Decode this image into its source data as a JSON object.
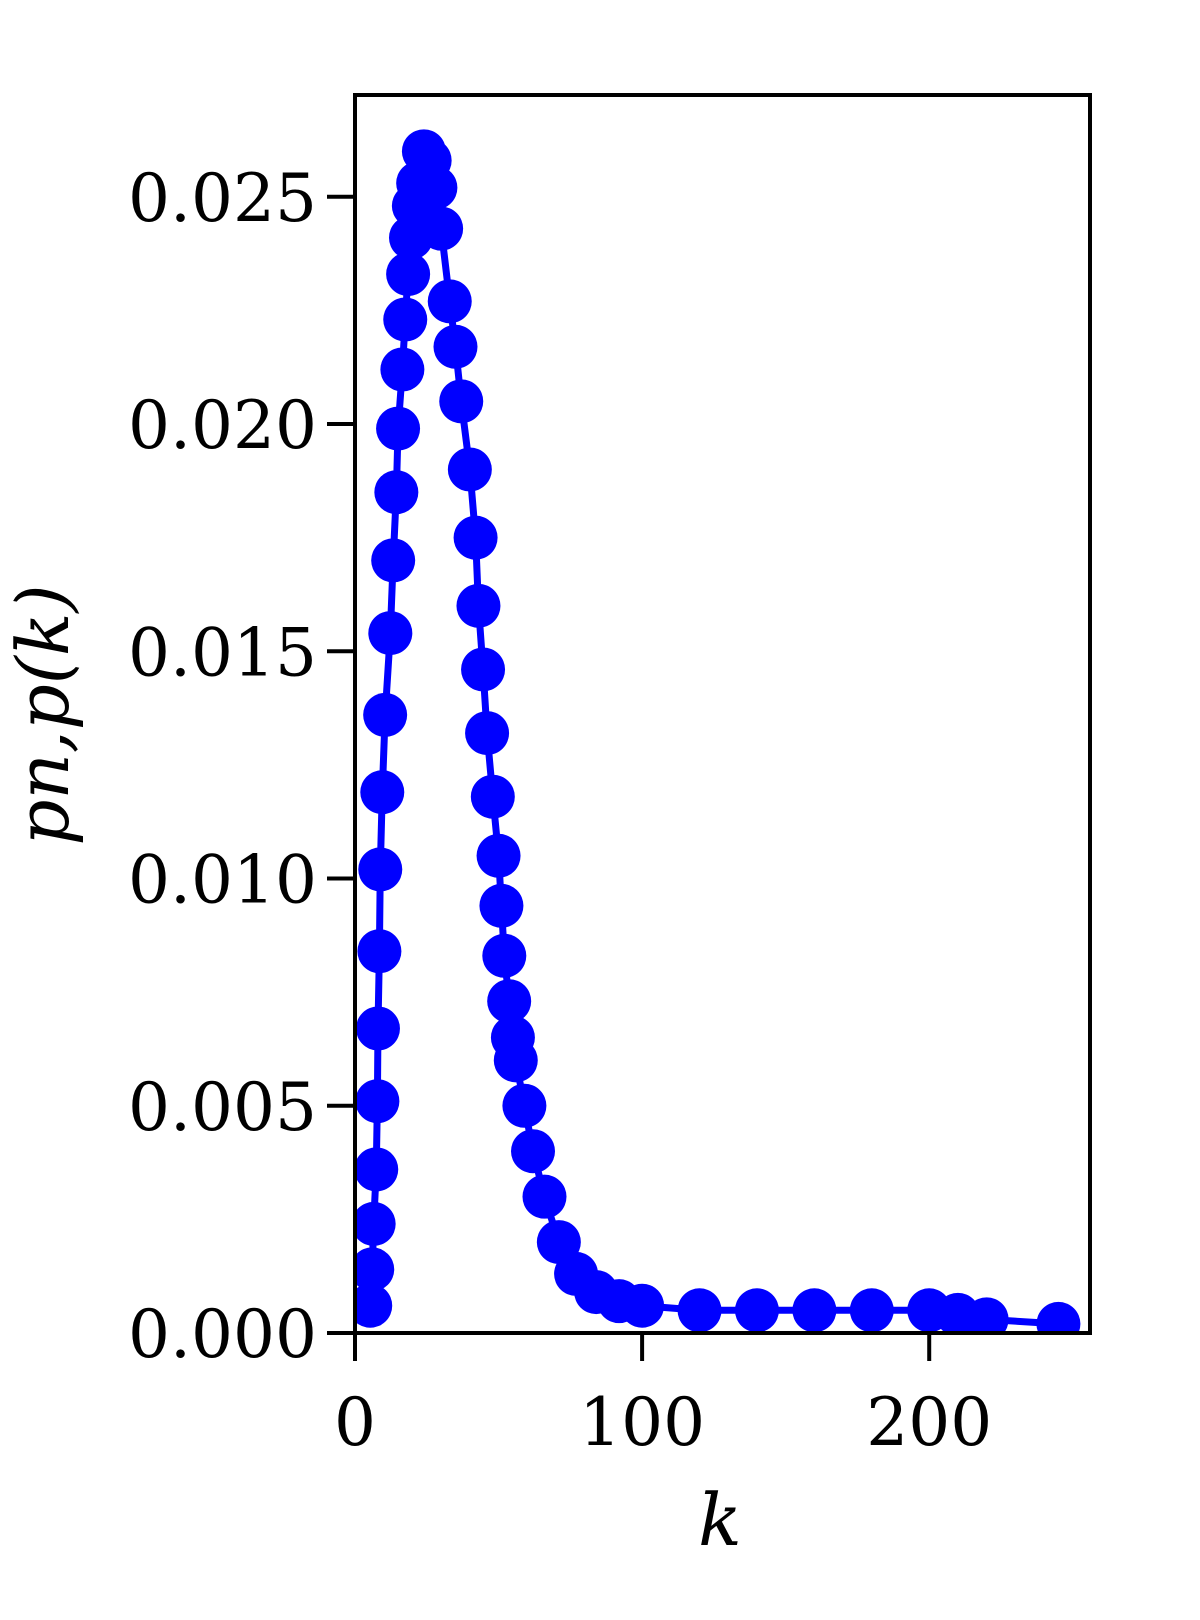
{
  "chart_data": {
    "type": "line",
    "xlabel": "k",
    "ylabel": "pn,p(k)",
    "series": [
      {
        "color": "#0000ff",
        "x": [
          5.3,
          6,
          6.5,
          7.4,
          7.8,
          8,
          8.5,
          8.8,
          9.5,
          10.5,
          12.3,
          13.3,
          14.4,
          15,
          16.5,
          17.5,
          18.5,
          19.5,
          20.5,
          22,
          24,
          26,
          28,
          30,
          33,
          35,
          37,
          40,
          42,
          43,
          44.6,
          46,
          48,
          50,
          51,
          52,
          53.7,
          55,
          56,
          59,
          62,
          66,
          71,
          77,
          84,
          92,
          100,
          120,
          140,
          160,
          180,
          200,
          210,
          220,
          245
        ],
        "values": [
          0.0006,
          0.0014,
          0.0024,
          0.0036,
          0.0051,
          0.0067,
          0.0084,
          0.0102,
          0.0119,
          0.0136,
          0.0154,
          0.017,
          0.0185,
          0.0199,
          0.0212,
          0.0223,
          0.0233,
          0.0241,
          0.0248,
          0.0253,
          0.026,
          0.0258,
          0.0252,
          0.0243,
          0.0227,
          0.0217,
          0.0205,
          0.019,
          0.0175,
          0.016,
          0.0146,
          0.0132,
          0.0118,
          0.0105,
          0.0094,
          0.0083,
          0.0073,
          0.0065,
          0.006,
          0.005,
          0.004,
          0.003,
          0.002,
          0.0013,
          0.0009,
          0.0007,
          0.0006,
          0.0005,
          0.0005,
          0.0005,
          0.0005,
          0.0005,
          0.0004,
          0.0003,
          0.0002
        ]
      }
    ],
    "xlim": [
      0,
      256
    ],
    "ylim": [
      0,
      0.02724
    ],
    "xticks": [
      0,
      100,
      200
    ],
    "yticks": [
      {
        "value": 0,
        "label": "0.000"
      },
      0.005,
      {
        "value": 0.01,
        "label": "0.010"
      },
      0.015,
      {
        "value": 0.02,
        "label": "0.020"
      },
      0.025
    ]
  }
}
